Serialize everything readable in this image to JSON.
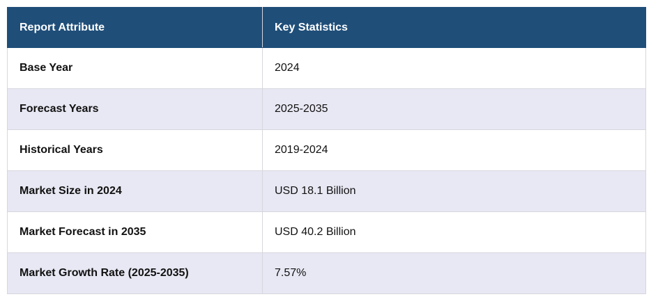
{
  "table": {
    "headers": [
      "Report Attribute",
      "Key Statistics"
    ],
    "rows": [
      {
        "attribute": "Base Year",
        "value": "2024"
      },
      {
        "attribute": "Forecast Years",
        "value": "2025-2035"
      },
      {
        "attribute": "Historical Years",
        "value": "2019-2024"
      },
      {
        "attribute": "Market Size in 2024",
        "value": "USD 18.1 Billion"
      },
      {
        "attribute": "Market Forecast in 2035",
        "value": "USD 40.2 Billion"
      },
      {
        "attribute": "Market Growth Rate (2025-2035)",
        "value": "7.57%"
      }
    ]
  },
  "colors": {
    "header_bg": "#1f4e79",
    "header_text": "#ffffff",
    "row_alt_bg": "#e8e8f4",
    "border": "#d6d6de"
  }
}
